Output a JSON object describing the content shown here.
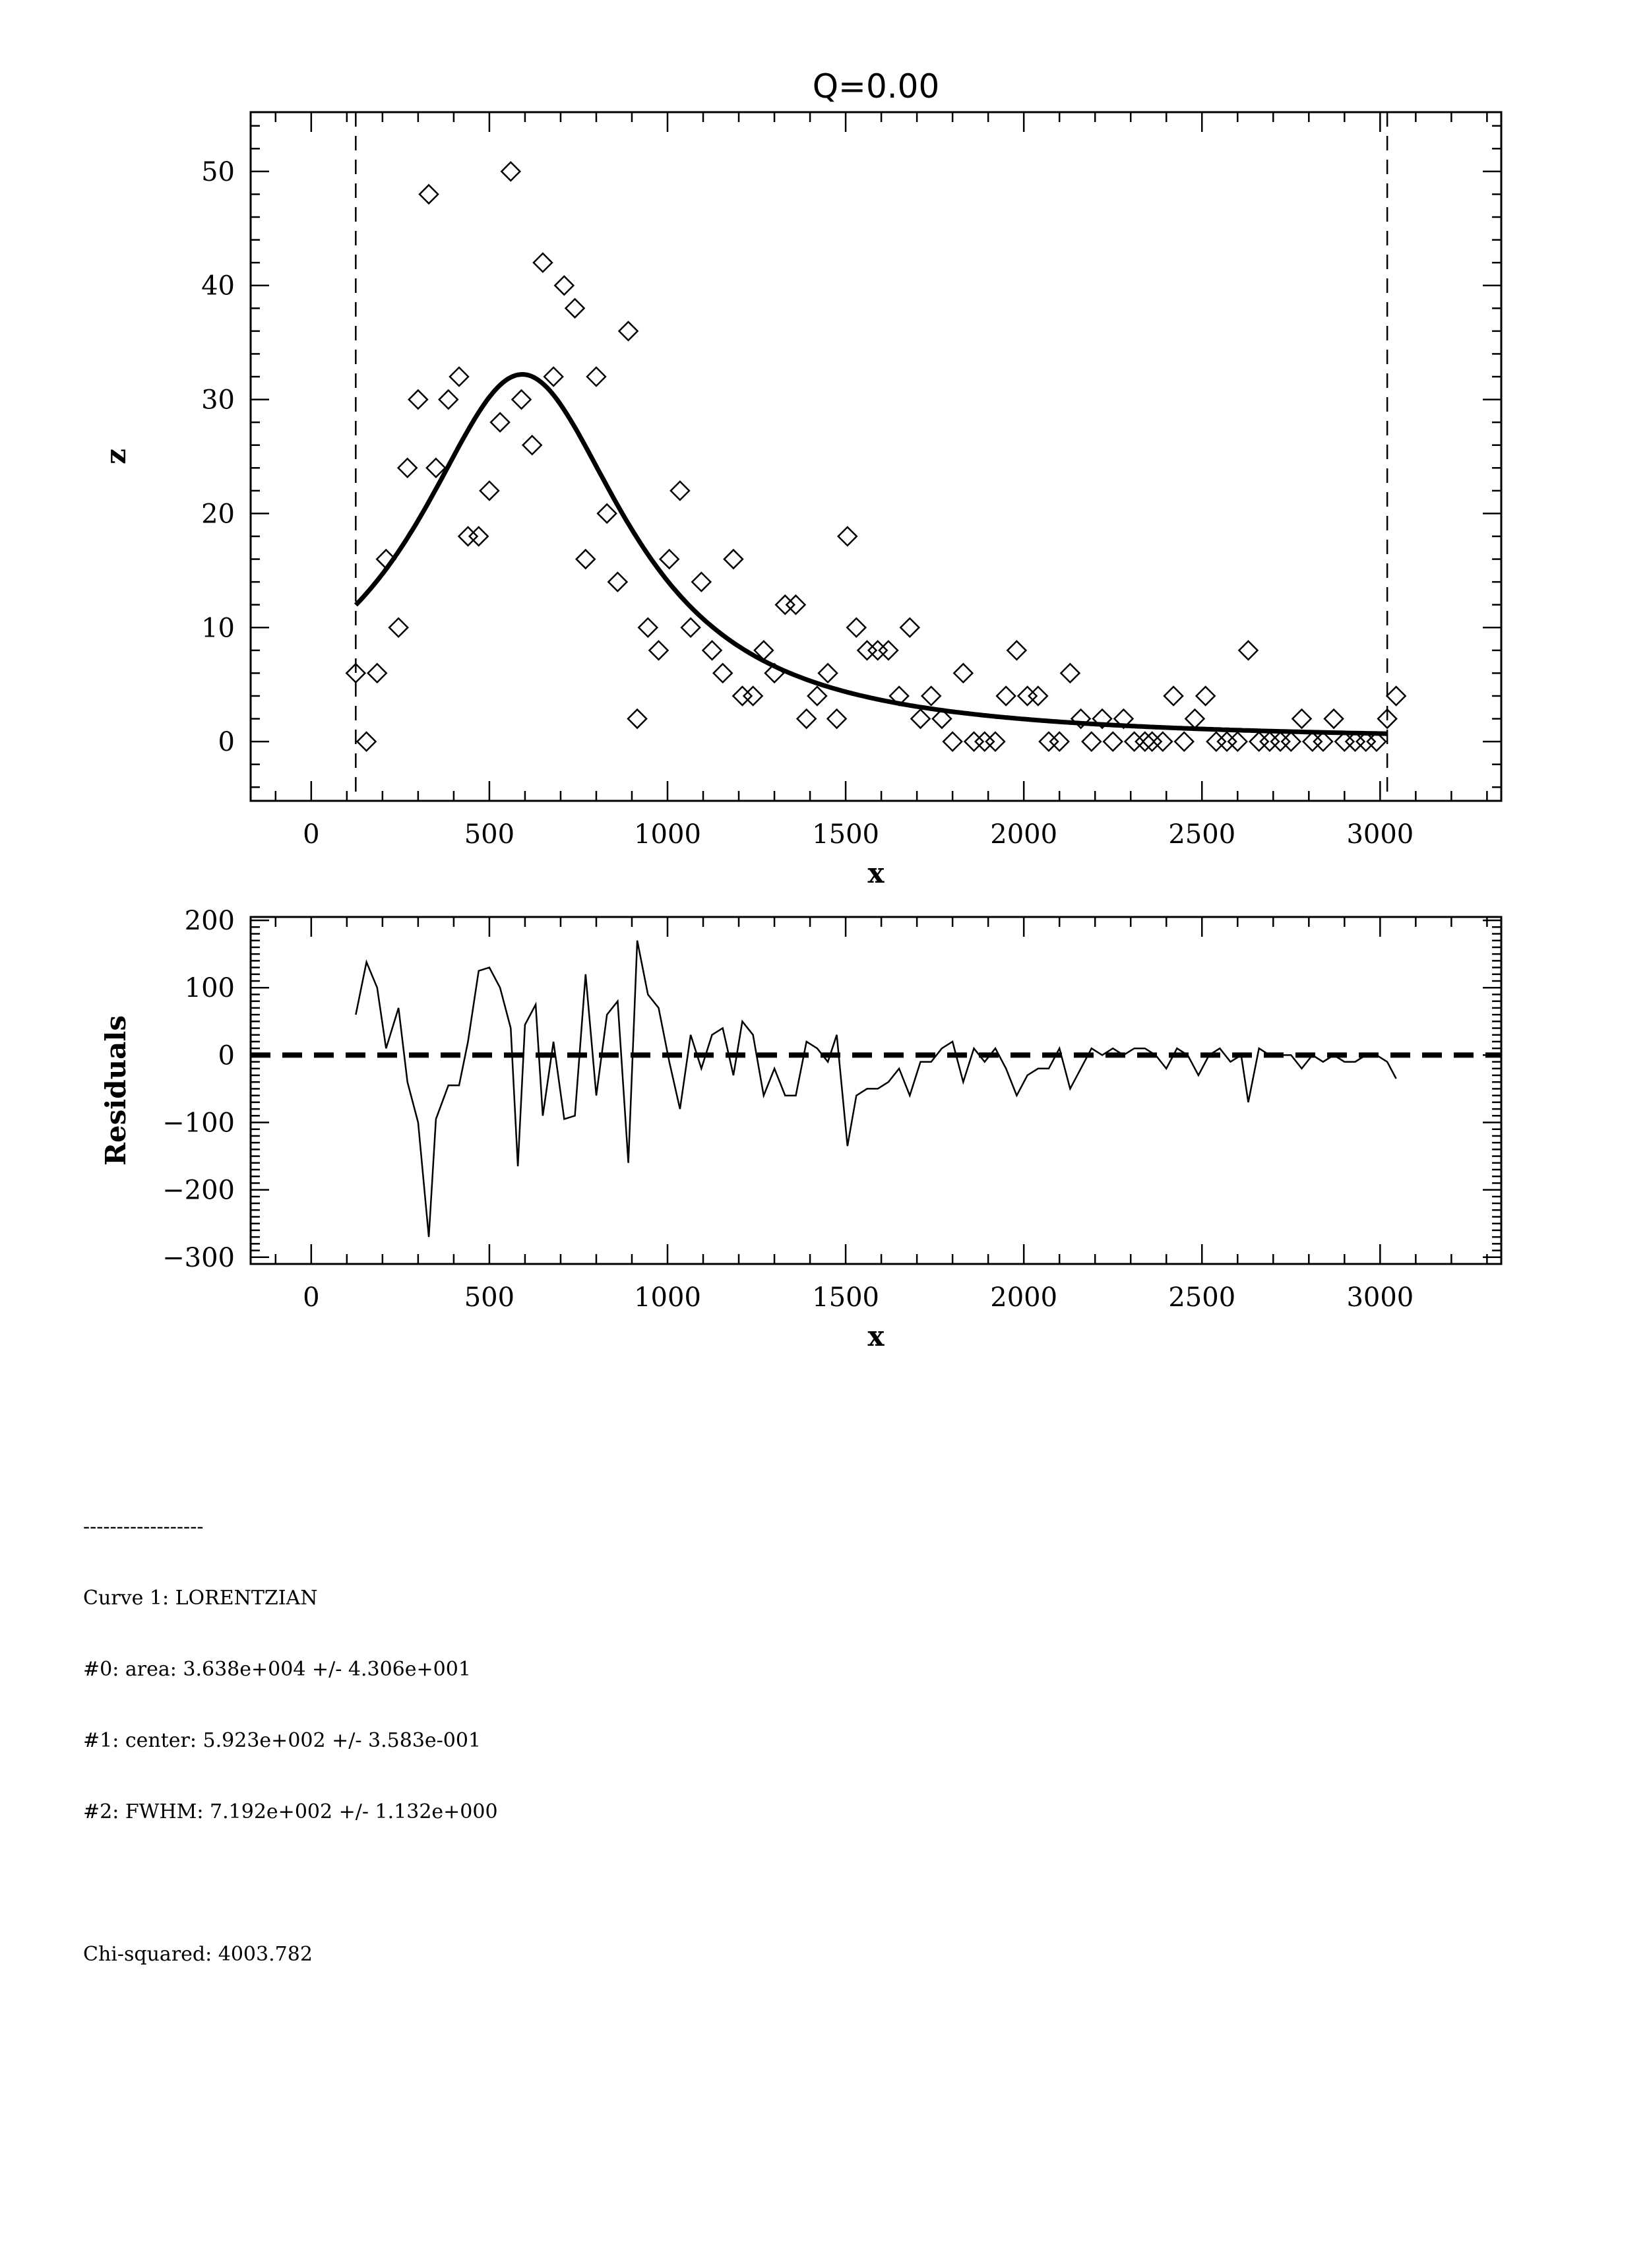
{
  "chart_data": [
    {
      "type": "scatter",
      "title": "Q=0.00",
      "xlabel": "x",
      "ylabel": "z",
      "xlim": [
        -170,
        3340
      ],
      "ylim": [
        -5.2,
        55.2
      ],
      "xticks": [
        0,
        500,
        1000,
        1500,
        2000,
        2500,
        3000
      ],
      "yticks": [
        0,
        10,
        20,
        30,
        40,
        50
      ],
      "grid": false,
      "vlines": [
        125,
        3020
      ],
      "points": [
        [
          125,
          6
        ],
        [
          155,
          0
        ],
        [
          185,
          6
        ],
        [
          210,
          16
        ],
        [
          245,
          10
        ],
        [
          270,
          24
        ],
        [
          300,
          30
        ],
        [
          330,
          48
        ],
        [
          350,
          24
        ],
        [
          385,
          30
        ],
        [
          415,
          32
        ],
        [
          440,
          18
        ],
        [
          470,
          18
        ],
        [
          500,
          22
        ],
        [
          530,
          28
        ],
        [
          560,
          50
        ],
        [
          590,
          30
        ],
        [
          620,
          26
        ],
        [
          650,
          42
        ],
        [
          680,
          32
        ],
        [
          710,
          40
        ],
        [
          740,
          38
        ],
        [
          770,
          16
        ],
        [
          800,
          32
        ],
        [
          830,
          20
        ],
        [
          860,
          14
        ],
        [
          890,
          36
        ],
        [
          915,
          2
        ],
        [
          945,
          10
        ],
        [
          975,
          8
        ],
        [
          1005,
          16
        ],
        [
          1035,
          22
        ],
        [
          1065,
          10
        ],
        [
          1095,
          14
        ],
        [
          1125,
          8
        ],
        [
          1155,
          6
        ],
        [
          1185,
          16
        ],
        [
          1210,
          4
        ],
        [
          1240,
          4
        ],
        [
          1270,
          8
        ],
        [
          1300,
          6
        ],
        [
          1330,
          12
        ],
        [
          1360,
          12
        ],
        [
          1390,
          2
        ],
        [
          1420,
          4
        ],
        [
          1450,
          6
        ],
        [
          1475,
          2
        ],
        [
          1505,
          18
        ],
        [
          1530,
          10
        ],
        [
          1560,
          8
        ],
        [
          1590,
          8
        ],
        [
          1620,
          8
        ],
        [
          1650,
          4
        ],
        [
          1680,
          10
        ],
        [
          1710,
          2
        ],
        [
          1740,
          4
        ],
        [
          1770,
          2
        ],
        [
          1800,
          0
        ],
        [
          1830,
          6
        ],
        [
          1860,
          0
        ],
        [
          1890,
          0
        ],
        [
          1920,
          0
        ],
        [
          1950,
          4
        ],
        [
          1980,
          8
        ],
        [
          2010,
          4
        ],
        [
          2040,
          4
        ],
        [
          2070,
          0
        ],
        [
          2100,
          0
        ],
        [
          2130,
          6
        ],
        [
          2160,
          2
        ],
        [
          2190,
          0
        ],
        [
          2220,
          2
        ],
        [
          2250,
          0
        ],
        [
          2280,
          2
        ],
        [
          2310,
          0
        ],
        [
          2340,
          0
        ],
        [
          2360,
          0
        ],
        [
          2390,
          0
        ],
        [
          2420,
          4
        ],
        [
          2450,
          0
        ],
        [
          2480,
          2
        ],
        [
          2510,
          4
        ],
        [
          2540,
          0
        ],
        [
          2570,
          0
        ],
        [
          2600,
          0
        ],
        [
          2630,
          8
        ],
        [
          2660,
          0
        ],
        [
          2690,
          0
        ],
        [
          2720,
          0
        ],
        [
          2750,
          0
        ],
        [
          2780,
          2
        ],
        [
          2810,
          0
        ],
        [
          2840,
          0
        ],
        [
          2870,
          2
        ],
        [
          2900,
          0
        ],
        [
          2930,
          0
        ],
        [
          2960,
          0
        ],
        [
          2990,
          0
        ],
        [
          3020,
          2
        ],
        [
          3045,
          4
        ]
      ],
      "fit": {
        "model": "lorentzian",
        "area": 36380,
        "center": 592.3,
        "fwhm": 719.2,
        "x_range": [
          125,
          3020
        ]
      }
    },
    {
      "type": "line",
      "title": "",
      "xlabel": "x",
      "ylabel": "Residuals",
      "xlim": [
        -170,
        3340
      ],
      "ylim": [
        -310,
        205
      ],
      "xticks": [
        0,
        500,
        1000,
        1500,
        2000,
        2500,
        3000
      ],
      "yticks": [
        -300,
        -200,
        -100,
        0,
        100,
        200
      ],
      "grid": false,
      "zero_line": 0,
      "points": [
        [
          125,
          60
        ],
        [
          155,
          138
        ],
        [
          185,
          100
        ],
        [
          210,
          10
        ],
        [
          245,
          70
        ],
        [
          270,
          -40
        ],
        [
          300,
          -100
        ],
        [
          330,
          -270
        ],
        [
          350,
          -95
        ],
        [
          385,
          -45
        ],
        [
          415,
          -45
        ],
        [
          440,
          20
        ],
        [
          470,
          125
        ],
        [
          500,
          130
        ],
        [
          530,
          100
        ],
        [
          560,
          40
        ],
        [
          580,
          -165
        ],
        [
          600,
          45
        ],
        [
          630,
          75
        ],
        [
          650,
          -90
        ],
        [
          680,
          20
        ],
        [
          710,
          -95
        ],
        [
          740,
          -90
        ],
        [
          770,
          120
        ],
        [
          800,
          -60
        ],
        [
          830,
          60
        ],
        [
          860,
          80
        ],
        [
          890,
          -160
        ],
        [
          915,
          170
        ],
        [
          945,
          90
        ],
        [
          975,
          70
        ],
        [
          1005,
          -10
        ],
        [
          1035,
          -80
        ],
        [
          1065,
          30
        ],
        [
          1095,
          -20
        ],
        [
          1125,
          30
        ],
        [
          1155,
          40
        ],
        [
          1185,
          -30
        ],
        [
          1210,
          50
        ],
        [
          1240,
          30
        ],
        [
          1270,
          -60
        ],
        [
          1300,
          -20
        ],
        [
          1330,
          -60
        ],
        [
          1360,
          -60
        ],
        [
          1390,
          20
        ],
        [
          1420,
          10
        ],
        [
          1450,
          -10
        ],
        [
          1475,
          30
        ],
        [
          1505,
          -135
        ],
        [
          1530,
          -60
        ],
        [
          1560,
          -50
        ],
        [
          1590,
          -50
        ],
        [
          1620,
          -40
        ],
        [
          1650,
          -20
        ],
        [
          1680,
          -60
        ],
        [
          1710,
          -10
        ],
        [
          1740,
          -10
        ],
        [
          1770,
          10
        ],
        [
          1800,
          20
        ],
        [
          1830,
          -40
        ],
        [
          1860,
          10
        ],
        [
          1890,
          -10
        ],
        [
          1920,
          10
        ],
        [
          1950,
          -20
        ],
        [
          1980,
          -60
        ],
        [
          2010,
          -30
        ],
        [
          2040,
          -20
        ],
        [
          2070,
          -20
        ],
        [
          2100,
          10
        ],
        [
          2130,
          -50
        ],
        [
          2160,
          -20
        ],
        [
          2190,
          10
        ],
        [
          2220,
          0
        ],
        [
          2250,
          10
        ],
        [
          2280,
          0
        ],
        [
          2310,
          10
        ],
        [
          2340,
          10
        ],
        [
          2370,
          0
        ],
        [
          2400,
          -20
        ],
        [
          2430,
          10
        ],
        [
          2460,
          0
        ],
        [
          2490,
          -30
        ],
        [
          2520,
          0
        ],
        [
          2550,
          10
        ],
        [
          2580,
          -10
        ],
        [
          2610,
          0
        ],
        [
          2630,
          -70
        ],
        [
          2660,
          10
        ],
        [
          2690,
          0
        ],
        [
          2720,
          0
        ],
        [
          2750,
          0
        ],
        [
          2780,
          -20
        ],
        [
          2810,
          0
        ],
        [
          2840,
          -10
        ],
        [
          2870,
          0
        ],
        [
          2900,
          -10
        ],
        [
          2930,
          -10
        ],
        [
          2960,
          0
        ],
        [
          2990,
          0
        ],
        [
          3020,
          -10
        ],
        [
          3045,
          -35
        ]
      ]
    }
  ],
  "fit_report": {
    "separator": "------------------",
    "curve": "Curve 1: LORENTZIAN",
    "p0": "#0: area: 3.638e+004 +/- 4.306e+001",
    "p1": "#1: center: 5.923e+002 +/- 3.583e-001",
    "p2": "#2: FWHM: 7.192e+002 +/- 1.132e+000",
    "chi_squared": "Chi-squared: 4003.782"
  }
}
